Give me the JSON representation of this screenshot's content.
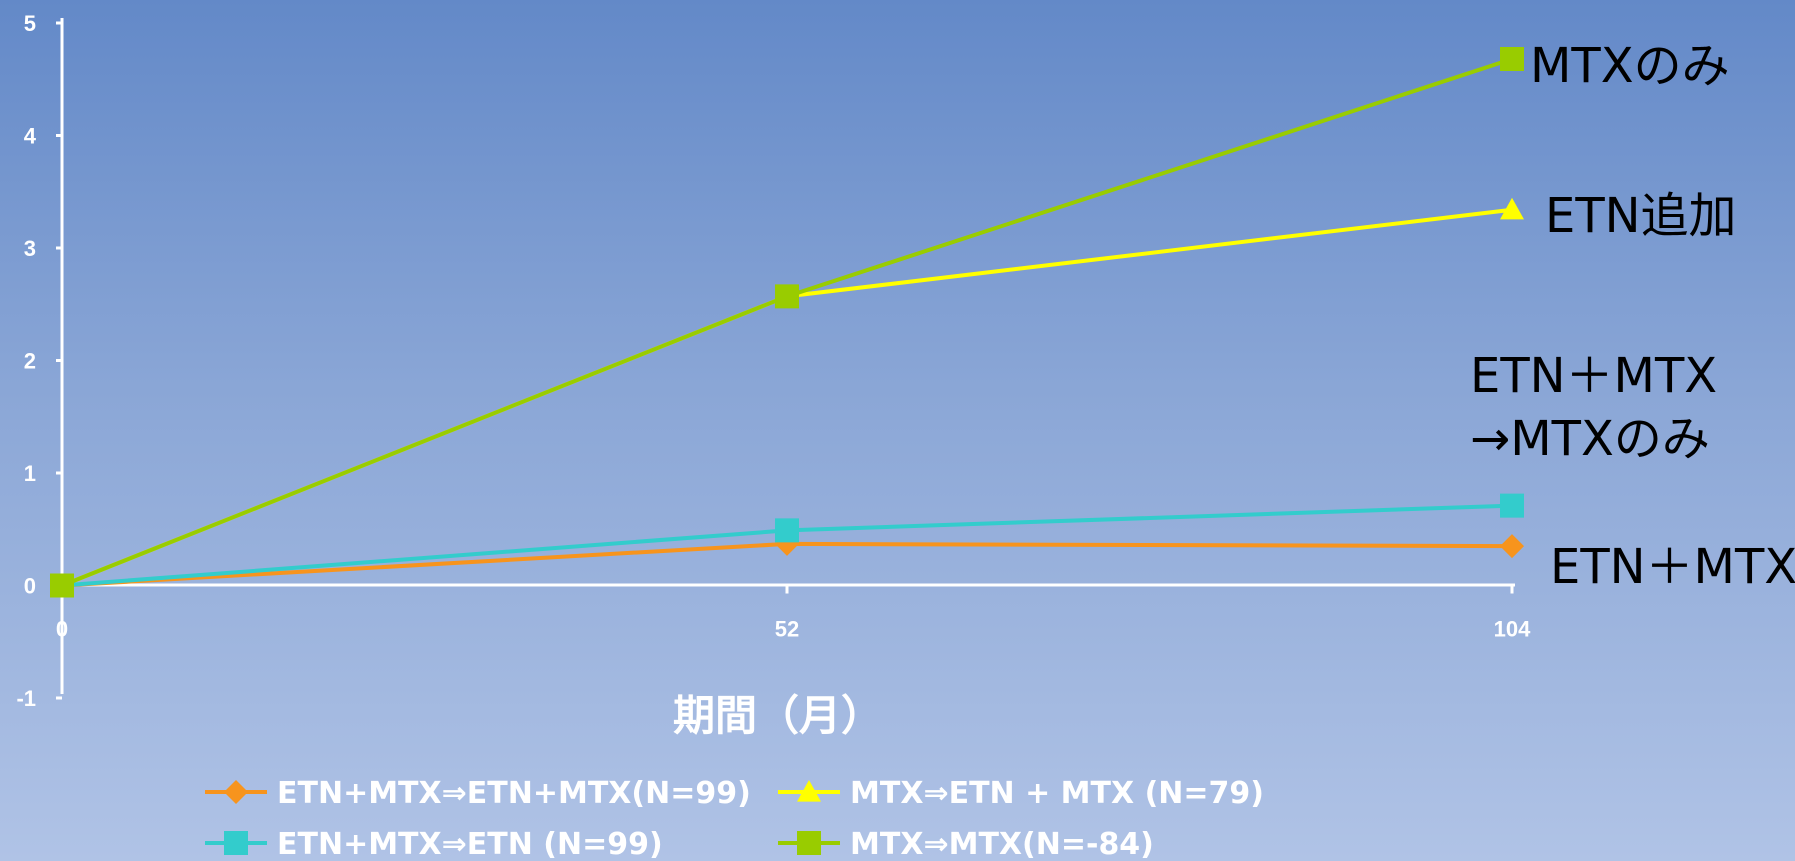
{
  "chart_data": {
    "type": "line",
    "x": [
      0,
      52,
      104
    ],
    "x_ticks": [
      "0",
      "52",
      "104"
    ],
    "y_ticks": [
      "-1",
      "0",
      "1",
      "2",
      "3",
      "4",
      "5"
    ],
    "ylim": [
      -1,
      5
    ],
    "xlim": [
      0,
      104
    ],
    "xlabel": "期間（月）",
    "ylabel": "",
    "grid": false,
    "legend_position": "bottom",
    "series": [
      {
        "name": "ETN+MTX⇒ETN+MTX(N=99)",
        "values": [
          0,
          0.37,
          0.35
        ],
        "color": "#f7941d",
        "marker": "diamond"
      },
      {
        "name": "MTX⇒ETN + MTX (N=79)",
        "values": [
          0,
          2.57,
          3.34
        ],
        "color": "#ffff00",
        "marker": "triangle"
      },
      {
        "name": "ETN+MTX⇒ETN (N=99)",
        "values": [
          0,
          0.49,
          0.71
        ],
        "color": "#33cccc",
        "marker": "square"
      },
      {
        "name": "MTX⇒MTX(N=-84)",
        "values": [
          0,
          2.57,
          4.68
        ],
        "color": "#99cc00",
        "marker": "square"
      }
    ],
    "annotations": {
      "mtx_only": "MTXのみ",
      "etn_add": "ETN追加",
      "etn_mtx_switch_line1": "ETN＋MTX",
      "etn_mtx_switch_line2": "→MTXのみ",
      "etn_mtx": "ETN＋MTX"
    }
  }
}
